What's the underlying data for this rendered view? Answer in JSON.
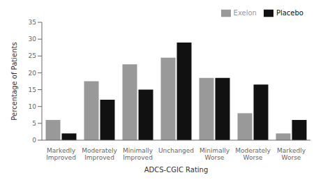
{
  "chart_data": {
    "type": "bar",
    "categories": [
      "Markedly\nImproved",
      "Moderately\nImproved",
      "Minimally\nImproved",
      "Unchanged",
      "Minimally\nWorse",
      "Moderately\nWorse",
      "Markedly\nWorse"
    ],
    "series": [
      {
        "name": "Exelon",
        "color": "#999999",
        "values": [
          6,
          17.5,
          22.5,
          24.5,
          18.5,
          8,
          2
        ]
      },
      {
        "name": "Placebo",
        "color": "#111111",
        "values": [
          2,
          12,
          15,
          29,
          18.5,
          16.5,
          6
        ]
      }
    ],
    "xlabel": "ADCS-CGIC Rating",
    "ylabel": "Percentage of Patients",
    "ylim": [
      0,
      35
    ],
    "yticks": [
      0,
      5,
      10,
      15,
      20,
      25,
      30,
      35
    ],
    "grid": false,
    "legend": "upper right"
  }
}
